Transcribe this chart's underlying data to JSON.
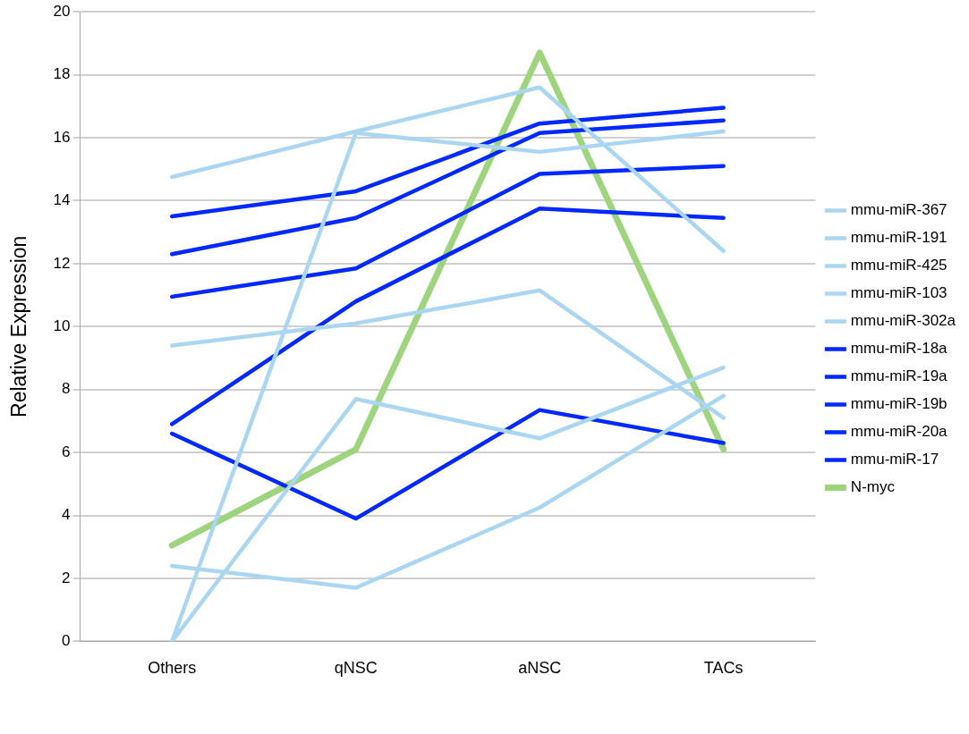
{
  "chart_data": {
    "type": "line",
    "ylabel": "Relative Expression",
    "categories": [
      "Others",
      "qNSC",
      "aNSC",
      "TACs"
    ],
    "ylim": [
      0,
      20
    ],
    "yticks": [
      0,
      2,
      4,
      6,
      8,
      10,
      12,
      14,
      16,
      18,
      20
    ],
    "grid": "y",
    "legend": "right",
    "marker": "none",
    "line_style": "solid",
    "series": [
      {
        "name": "mmu-miR-367",
        "color": "#aad6f2",
        "values": [
          14.75,
          16.2,
          17.6,
          12.4
        ]
      },
      {
        "name": "mmu-miR-191",
        "color": "#aad6f2",
        "values": [
          0,
          16.15,
          15.55,
          16.2
        ]
      },
      {
        "name": "mmu-miR-425",
        "color": "#aad6f2",
        "values": [
          9.4,
          10.1,
          11.15,
          7.1
        ]
      },
      {
        "name": "mmu-miR-103",
        "color": "#aad6f2",
        "values": [
          0,
          7.7,
          6.45,
          8.7
        ]
      },
      {
        "name": "mmu-miR-302a",
        "color": "#aad6f2",
        "values": [
          2.4,
          1.7,
          4.25,
          7.8
        ]
      },
      {
        "name": "mmu-miR-18a",
        "color": "#0028ff",
        "values": [
          13.5,
          14.3,
          16.45,
          16.95
        ]
      },
      {
        "name": "mmu-miR-19a",
        "color": "#0028ff",
        "values": [
          12.3,
          13.45,
          16.15,
          16.55
        ]
      },
      {
        "name": "mmu-miR-19b",
        "color": "#0028ff",
        "values": [
          10.95,
          11.85,
          14.85,
          15.1
        ]
      },
      {
        "name": "mmu-miR-20a",
        "color": "#0028ff",
        "values": [
          6.9,
          10.8,
          13.75,
          13.45
        ]
      },
      {
        "name": "mmu-miR-17",
        "color": "#0028ff",
        "values": [
          6.6,
          3.9,
          7.35,
          6.3
        ]
      },
      {
        "name": "N-myc",
        "color": "#9dd47d",
        "values": [
          3.05,
          6.1,
          18.7,
          6.1
        ]
      }
    ]
  }
}
